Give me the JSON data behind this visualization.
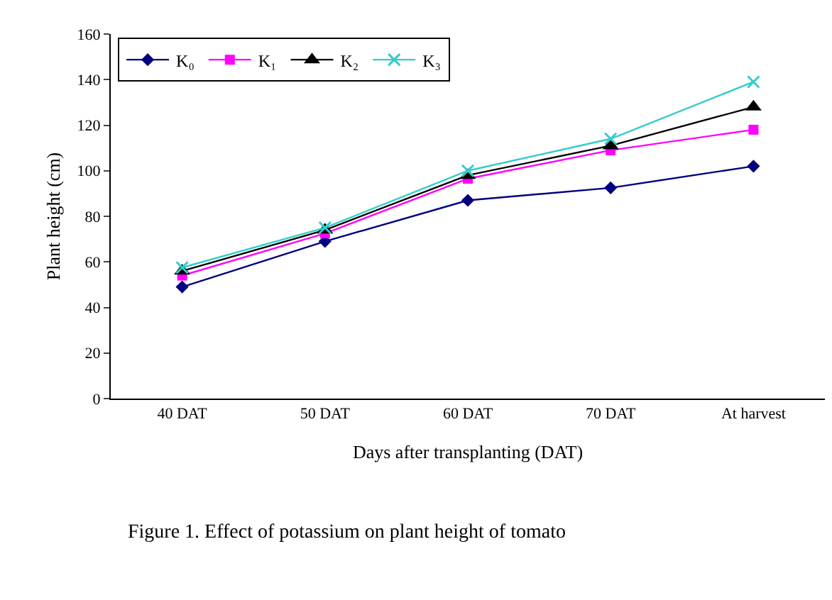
{
  "chart_data": {
    "type": "line",
    "xlabel": "Days after transplanting (DAT)",
    "ylabel": "Plant height (cm)",
    "categories": [
      "40 DAT",
      "50 DAT",
      "60 DAT",
      "70 DAT",
      "At harvest"
    ],
    "series": [
      {
        "name": "K₀",
        "color": "#000080",
        "values": [
          49,
          69,
          87,
          92.5,
          102
        ],
        "marker": "diamond"
      },
      {
        "name": "K₁",
        "color": "#ff00ff",
        "values": [
          54,
          72.5,
          96.5,
          109,
          118
        ],
        "marker": "square"
      },
      {
        "name": "K₂",
        "color": "#000000",
        "values": [
          56,
          74,
          98,
          111,
          128
        ],
        "marker": "triangle"
      },
      {
        "name": "K₃",
        "color": "#33cccc",
        "values": [
          57.5,
          75,
          100,
          114,
          139
        ],
        "marker": "cross"
      }
    ],
    "ylim": [
      0,
      160
    ],
    "yticks": [
      0,
      20,
      40,
      60,
      80,
      100,
      120,
      140,
      160
    ],
    "grid": false,
    "legend": "top left",
    "line_style": "solid",
    "annotations": [
      "Figure 1. Effect of potassium on plant height of tomato"
    ]
  }
}
